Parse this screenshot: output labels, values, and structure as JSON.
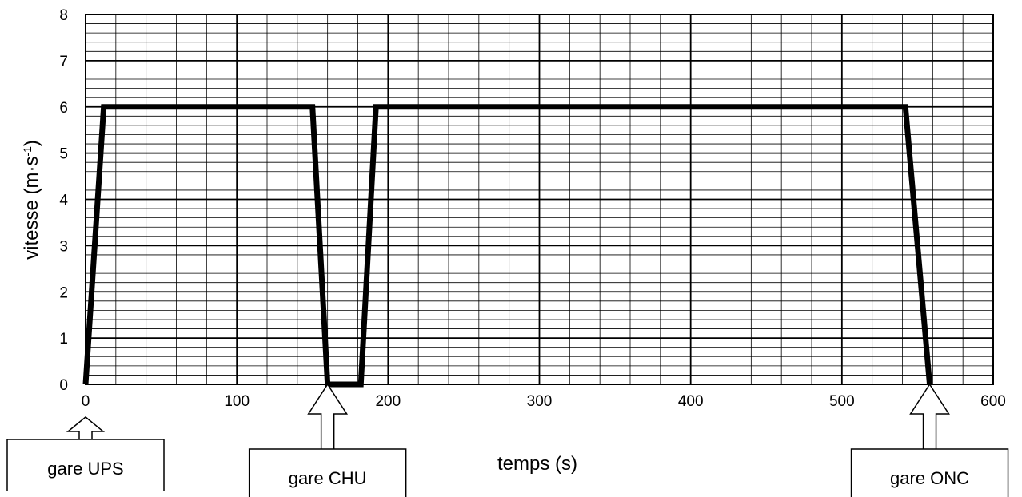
{
  "chart_data": {
    "type": "line",
    "xlabel": "temps (s)",
    "ylabel_main": "vitesse (m·s",
    "ylabel_sup": "-1",
    "ylabel_close": ")",
    "xlim": [
      0,
      600
    ],
    "ylim": [
      0,
      8
    ],
    "x_ticks": [
      0,
      100,
      200,
      300,
      400,
      500,
      600
    ],
    "y_ticks": [
      0,
      1,
      2,
      3,
      4,
      5,
      6,
      7,
      8
    ],
    "grid": true,
    "minor_grid_x_step": 20,
    "minor_grid_y_step": 0.2,
    "line_color": "#000000",
    "series": [
      {
        "x": [
          0,
          12,
          150,
          160,
          182,
          192,
          542,
          558
        ],
        "y": [
          0,
          6,
          6,
          0,
          0,
          6,
          6,
          0
        ]
      }
    ],
    "annotations": [
      {
        "label": "gare UPS",
        "x": 0
      },
      {
        "label": "gare CHU",
        "x": 160
      },
      {
        "label": "gare ONC",
        "x": 558
      }
    ]
  }
}
